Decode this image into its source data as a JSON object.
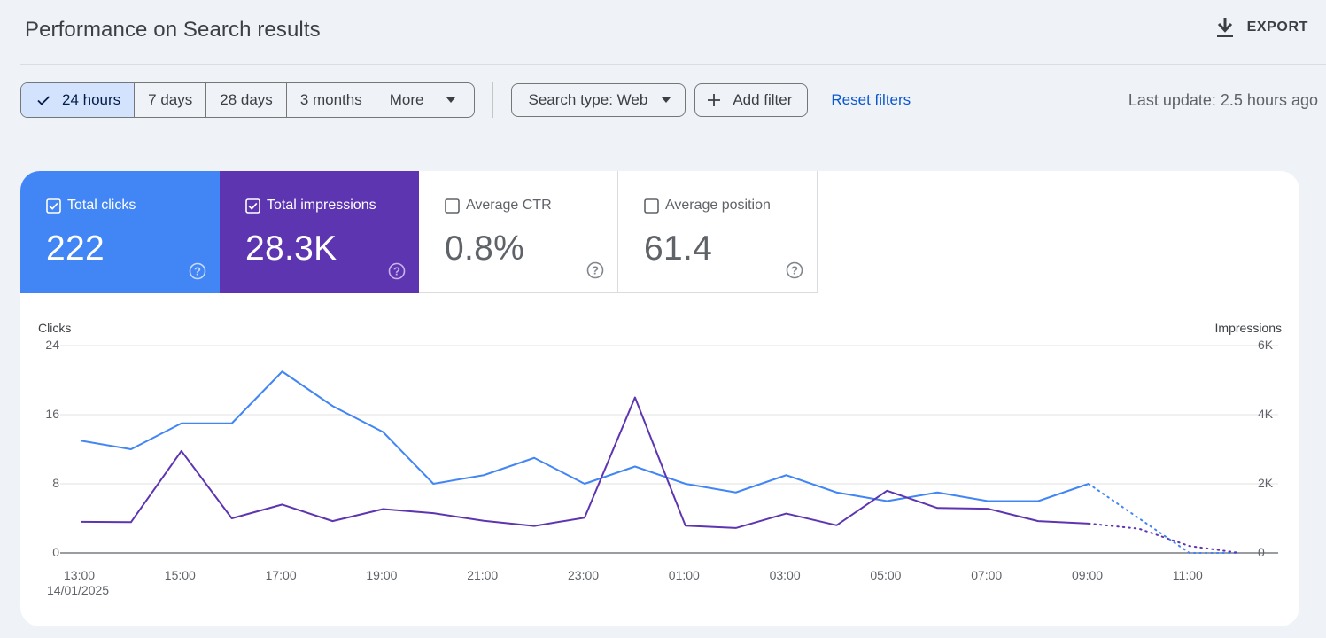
{
  "header": {
    "title": "Performance on Search results",
    "export_label": "EXPORT"
  },
  "toolbar": {
    "date_ranges": [
      {
        "label": "24 hours",
        "selected": true
      },
      {
        "label": "7 days",
        "selected": false
      },
      {
        "label": "28 days",
        "selected": false
      },
      {
        "label": "3 months",
        "selected": false
      }
    ],
    "more_label": "More",
    "search_type_label": "Search type: Web",
    "add_filter_label": "Add filter",
    "reset_label": "Reset filters",
    "last_update": "Last update: 2.5 hours ago"
  },
  "metrics": [
    {
      "label": "Total clicks",
      "value": "222",
      "checked": true
    },
    {
      "label": "Total impressions",
      "value": "28.3K",
      "checked": true
    },
    {
      "label": "Average CTR",
      "value": "0.8%",
      "checked": false
    },
    {
      "label": "Average position",
      "value": "61.4",
      "checked": false
    }
  ],
  "colors": {
    "clicks": "#4285f4",
    "impressions": "#5e35b1",
    "link": "#0b57d0",
    "selected_range_bg": "#d3e3fd"
  },
  "chart_data": {
    "type": "line",
    "x": [
      "13:00",
      "14:00",
      "15:00",
      "16:00",
      "17:00",
      "18:00",
      "19:00",
      "20:00",
      "21:00",
      "22:00",
      "23:00",
      "00:00",
      "01:00",
      "02:00",
      "03:00",
      "04:00",
      "05:00",
      "06:00",
      "07:00",
      "08:00",
      "09:00",
      "10:00",
      "11:00",
      "12:00"
    ],
    "x_tick_labels": [
      "13:00",
      "15:00",
      "17:00",
      "19:00",
      "21:00",
      "23:00",
      "01:00",
      "03:00",
      "05:00",
      "07:00",
      "09:00",
      "11:00"
    ],
    "x_sub_label": "14/01/2025",
    "left_axis": {
      "title": "Clicks",
      "ticks": [
        "0",
        "8",
        "16",
        "24"
      ],
      "range": [
        0,
        24
      ]
    },
    "right_axis": {
      "title": "Impressions",
      "ticks": [
        "0",
        "2K",
        "4K",
        "6K"
      ],
      "range": [
        0,
        6000
      ]
    },
    "series": [
      {
        "name": "Total clicks",
        "axis": "left",
        "color": "#4285f4",
        "values": [
          13,
          12,
          15,
          15,
          21,
          17,
          14,
          8,
          9,
          11,
          8,
          10,
          8,
          7,
          9,
          7,
          6,
          7,
          6,
          6,
          8,
          4,
          0,
          0
        ],
        "partial_from_index": 20
      },
      {
        "name": "Total impressions",
        "axis": "right",
        "color": "#5e35b1",
        "values": [
          900,
          890,
          2950,
          1000,
          1400,
          920,
          1270,
          1150,
          930,
          780,
          1020,
          4500,
          790,
          720,
          1140,
          800,
          1800,
          1300,
          1280,
          920,
          850,
          700,
          200,
          0
        ],
        "partial_from_index": 20
      }
    ],
    "grid": true
  }
}
